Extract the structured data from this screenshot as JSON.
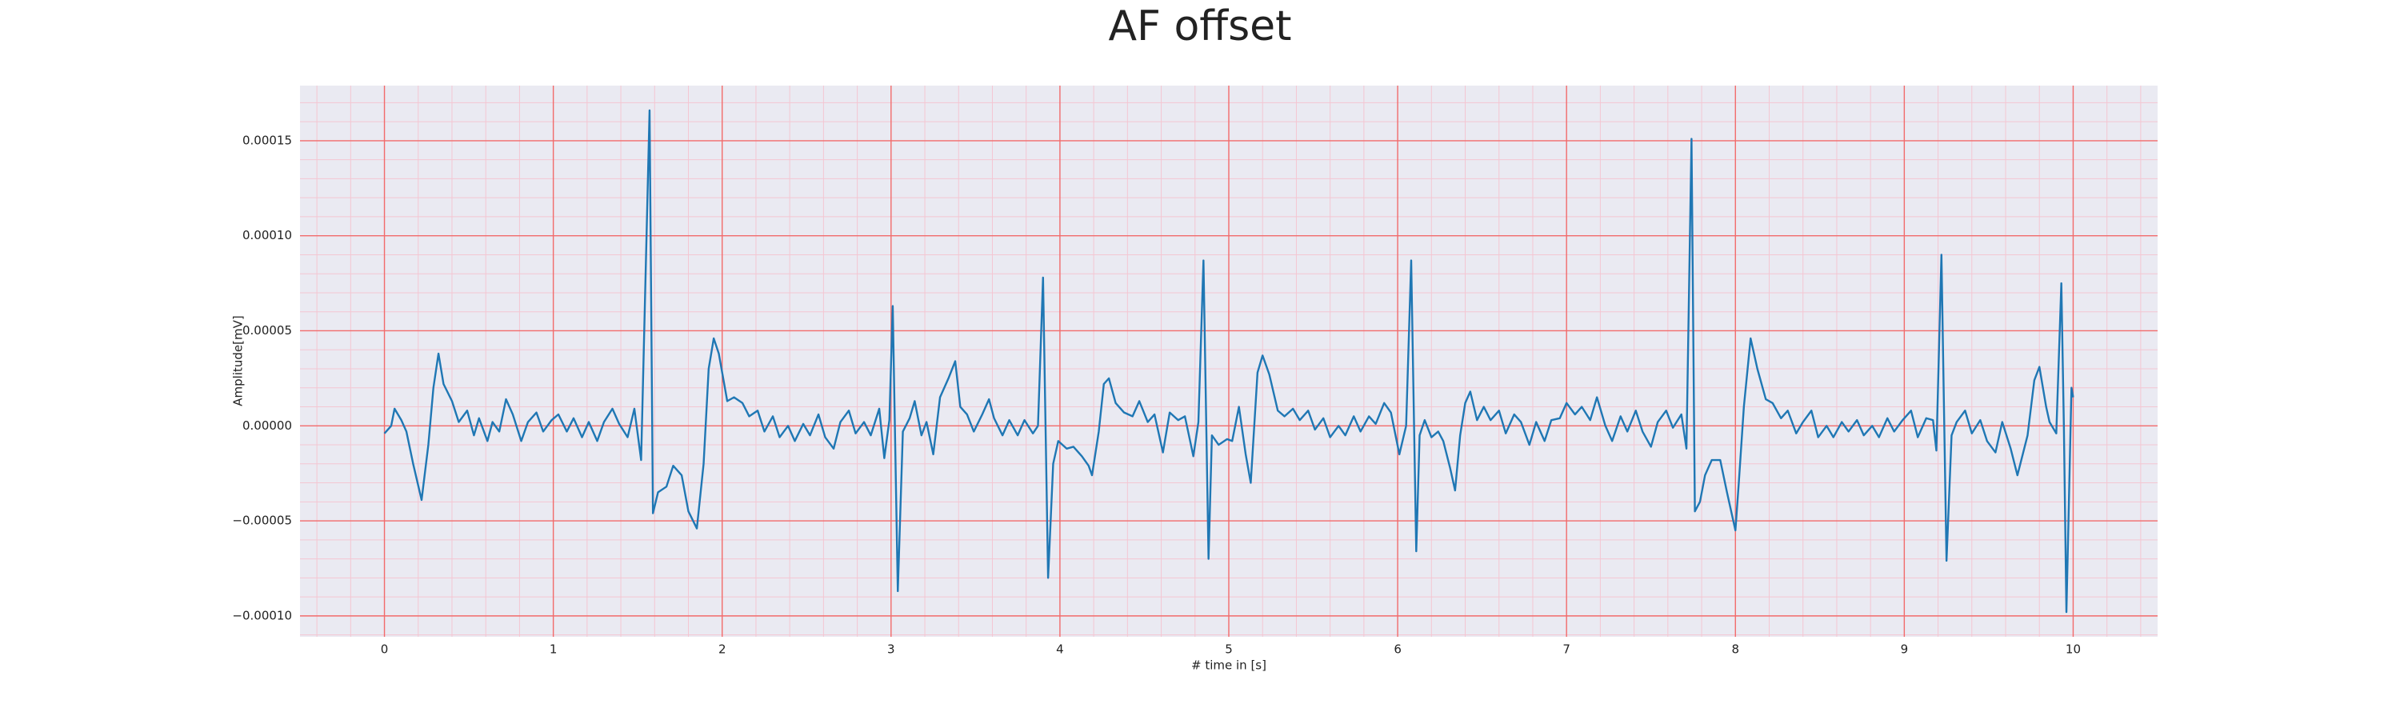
{
  "chart_data": {
    "type": "line",
    "title": "AF offset",
    "xlabel": "# time in [s]",
    "ylabel": "Amplitude[mV]",
    "color": "#1f77b4",
    "background": "#eaeaf2",
    "grid": true,
    "grid_color": "#f26b6b",
    "minor_grid_color": "#f4c6d2",
    "xlim": [
      -0.5,
      10.5
    ],
    "ylim": [
      -0.000111,
      0.000179
    ],
    "xticks": [
      0,
      1,
      2,
      3,
      4,
      5,
      6,
      7,
      8,
      9,
      10
    ],
    "yticks": [
      {
        "value": -0.0001,
        "label": "−0.00010"
      },
      {
        "value": -5e-05,
        "label": "−0.00005"
      },
      {
        "value": 0,
        "label": "0.00000"
      },
      {
        "value": 5e-05,
        "label": "0.00005"
      },
      {
        "value": 0.0001,
        "label": "0.00010"
      },
      {
        "value": 0.00015,
        "label": "0.00015"
      }
    ],
    "xminorticks": [
      -0.4,
      -0.2,
      0.2,
      0.4,
      0.6,
      0.8,
      1.2,
      1.4,
      1.6,
      1.8,
      2.2,
      2.4,
      2.6,
      2.8,
      3.2,
      3.4,
      3.6,
      3.8,
      4.2,
      4.4,
      4.6,
      4.8,
      5.2,
      5.4,
      5.6,
      5.8,
      6.2,
      6.4,
      6.6,
      6.8,
      7.2,
      7.4,
      7.6,
      7.8,
      8.2,
      8.4,
      8.6,
      8.8,
      9.2,
      9.4,
      9.6,
      9.8,
      10.2,
      10.4
    ],
    "yminorticks": [
      -0.00011,
      -9e-05,
      -8e-05,
      -7e-05,
      -6e-05,
      -4e-05,
      -3e-05,
      -2e-05,
      -1e-05,
      1e-05,
      2e-05,
      3e-05,
      4e-05,
      6e-05,
      7e-05,
      8e-05,
      9e-05,
      0.00011,
      0.00012,
      0.00013,
      0.00014,
      0.00016,
      0.00017
    ],
    "x": [
      0,
      0.04,
      0.06,
      0.1,
      0.13,
      0.17,
      0.22,
      0.26,
      0.29,
      0.32,
      0.35,
      0.4,
      0.44,
      0.49,
      0.53,
      0.56,
      0.61,
      0.64,
      0.68,
      0.72,
      0.76,
      0.81,
      0.85,
      0.9,
      0.94,
      0.99,
      1.03,
      1.08,
      1.12,
      1.17,
      1.21,
      1.26,
      1.3,
      1.35,
      1.39,
      1.44,
      1.48,
      1.52,
      1.57,
      1.59,
      1.62,
      1.67,
      1.71,
      1.76,
      1.8,
      1.85,
      1.89,
      1.92,
      1.95,
      1.98,
      2.03,
      2.07,
      2.12,
      2.16,
      2.21,
      2.25,
      2.3,
      2.34,
      2.39,
      2.43,
      2.48,
      2.52,
      2.57,
      2.61,
      2.66,
      2.7,
      2.75,
      2.79,
      2.84,
      2.88,
      2.93,
      2.96,
      2.99,
      3.01,
      3.04,
      3.07,
      3.11,
      3.14,
      3.18,
      3.21,
      3.25,
      3.29,
      3.34,
      3.38,
      3.41,
      3.45,
      3.49,
      3.54,
      3.58,
      3.61,
      3.66,
      3.7,
      3.75,
      3.79,
      3.84,
      3.87,
      3.9,
      3.93,
      3.96,
      3.99,
      4.04,
      4.08,
      4.13,
      4.17,
      4.19,
      4.23,
      4.26,
      4.29,
      4.33,
      4.38,
      4.43,
      4.47,
      4.52,
      4.56,
      4.61,
      4.65,
      4.7,
      4.74,
      4.79,
      4.82,
      4.85,
      4.88,
      4.9,
      4.94,
      4.99,
      5.02,
      5.06,
      5.1,
      5.13,
      5.17,
      5.2,
      5.24,
      5.29,
      5.33,
      5.38,
      5.42,
      5.47,
      5.51,
      5.56,
      5.6,
      5.65,
      5.69,
      5.74,
      5.78,
      5.83,
      5.87,
      5.92,
      5.96,
      6.01,
      6.05,
      6.08,
      6.11,
      6.13,
      6.16,
      6.2,
      6.24,
      6.27,
      6.31,
      6.34,
      6.37,
      6.4,
      6.43,
      6.47,
      6.51,
      6.55,
      6.6,
      6.64,
      6.69,
      6.73,
      6.78,
      6.82,
      6.87,
      6.91,
      6.96,
      7.0,
      7.05,
      7.09,
      7.14,
      7.18,
      7.23,
      7.27,
      7.32,
      7.36,
      7.41,
      7.45,
      7.5,
      7.54,
      7.59,
      7.63,
      7.68,
      7.71,
      7.74,
      7.76,
      7.79,
      7.82,
      7.86,
      7.91,
      7.95,
      8.0,
      8.02,
      8.05,
      8.09,
      8.13,
      8.18,
      8.22,
      8.27,
      8.31,
      8.36,
      8.4,
      8.45,
      8.49,
      8.54,
      8.58,
      8.63,
      8.67,
      8.72,
      8.76,
      8.81,
      8.85,
      8.9,
      8.94,
      8.99,
      9.04,
      9.08,
      9.13,
      9.17,
      9.19,
      9.22,
      9.25,
      9.28,
      9.31,
      9.36,
      9.4,
      9.45,
      9.49,
      9.54,
      9.58,
      9.63,
      9.67,
      9.73,
      9.77,
      9.8,
      9.84,
      9.86,
      9.9,
      9.93,
      9.945,
      9.96,
      9.99,
      10.0
    ],
    "values": [
      -4e-06,
      0.0,
      9e-06,
      3e-06,
      -3e-06,
      -2e-05,
      -3.9e-05,
      -1e-05,
      2e-05,
      3.8e-05,
      2.2e-05,
      1.3e-05,
      2e-06,
      8e-06,
      -5e-06,
      4e-06,
      -8e-06,
      2e-06,
      -3e-06,
      1.4e-05,
      6e-06,
      -8e-06,
      2e-06,
      7e-06,
      -3e-06,
      3e-06,
      6e-06,
      -3e-06,
      4e-06,
      -6e-06,
      2e-06,
      -8e-06,
      2e-06,
      9e-06,
      1e-06,
      -6e-06,
      9e-06,
      -1.8e-05,
      0.000166,
      -4.6e-05,
      -3.5e-05,
      -3.2e-05,
      -2.1e-05,
      -2.6e-05,
      -4.5e-05,
      -5.4e-05,
      -2e-05,
      3e-05,
      4.6e-05,
      3.8e-05,
      1.3e-05,
      1.5e-05,
      1.2e-05,
      5e-06,
      8e-06,
      -3e-06,
      5e-06,
      -6e-06,
      0.0,
      -8e-06,
      1e-06,
      -5e-06,
      6e-06,
      -6e-06,
      -1.2e-05,
      2e-06,
      8e-06,
      -4e-06,
      2e-06,
      -5e-06,
      9e-06,
      -1.7e-05,
      3e-06,
      6.3e-05,
      -8.7e-05,
      -3e-06,
      4e-06,
      1.3e-05,
      -5e-06,
      2e-06,
      -1.5e-05,
      1.5e-05,
      2.5e-05,
      3.4e-05,
      1e-05,
      6e-06,
      -3e-06,
      6e-06,
      1.4e-05,
      4e-06,
      -5e-06,
      3e-06,
      -5e-06,
      3e-06,
      -4e-06,
      0.0,
      7.8e-05,
      -8e-05,
      -2e-05,
      -8e-06,
      -1.2e-05,
      -1.1e-05,
      -1.6e-05,
      -2.1e-05,
      -2.6e-05,
      -3e-06,
      2.2e-05,
      2.5e-05,
      1.2e-05,
      7e-06,
      5e-06,
      1.3e-05,
      2e-06,
      6e-06,
      -1.4e-05,
      7e-06,
      3e-06,
      5e-06,
      -1.6e-05,
      2e-06,
      8.7e-05,
      -7e-05,
      -5e-06,
      -1e-05,
      -7e-06,
      -8e-06,
      1e-05,
      -1.5e-05,
      -3e-05,
      2.8e-05,
      3.7e-05,
      2.7e-05,
      8e-06,
      5e-06,
      9e-06,
      3e-06,
      8e-06,
      -2e-06,
      4e-06,
      -6e-06,
      0.0,
      -5e-06,
      5e-06,
      -3e-06,
      5e-06,
      1e-06,
      1.2e-05,
      7e-06,
      -1.5e-05,
      0.0,
      8.7e-05,
      -6.6e-05,
      -5e-06,
      3e-06,
      -6e-06,
      -3e-06,
      -8e-06,
      -2.2e-05,
      -3.4e-05,
      -5e-06,
      1.2e-05,
      1.8e-05,
      3e-06,
      1e-05,
      3e-06,
      8e-06,
      -4e-06,
      6e-06,
      2e-06,
      -1e-05,
      2e-06,
      -8e-06,
      3e-06,
      4e-06,
      1.2e-05,
      6e-06,
      1e-05,
      3e-06,
      1.5e-05,
      0.0,
      -8e-06,
      5e-06,
      -3e-06,
      8e-06,
      -3e-06,
      -1.1e-05,
      2e-06,
      8e-06,
      -1e-06,
      6e-06,
      -1.2e-05,
      0.000151,
      -4.5e-05,
      -4e-05,
      -2.6e-05,
      -1.8e-05,
      -1.8e-05,
      -3.5e-05,
      -5.5e-05,
      -3e-05,
      1e-05,
      4.6e-05,
      3e-05,
      1.4e-05,
      1.2e-05,
      4e-06,
      8e-06,
      -4e-06,
      2e-06,
      8e-06,
      -6e-06,
      0.0,
      -6e-06,
      2e-06,
      -3e-06,
      3e-06,
      -5e-06,
      0.0,
      -6e-06,
      4e-06,
      -3e-06,
      3e-06,
      8e-06,
      -6e-06,
      4e-06,
      3e-06,
      -1.3e-05,
      9e-05,
      -7.1e-05,
      -5e-06,
      2e-06,
      8e-06,
      -4e-06,
      3e-06,
      -8e-06,
      -1.4e-05,
      2e-06,
      -1.2e-05,
      -2.6e-05,
      -5e-06,
      2.4e-05,
      3.1e-05,
      1e-05,
      2e-06,
      -4e-06,
      7.5e-05,
      0.0,
      -9.8e-05,
      2e-05,
      1.5e-05
    ]
  }
}
